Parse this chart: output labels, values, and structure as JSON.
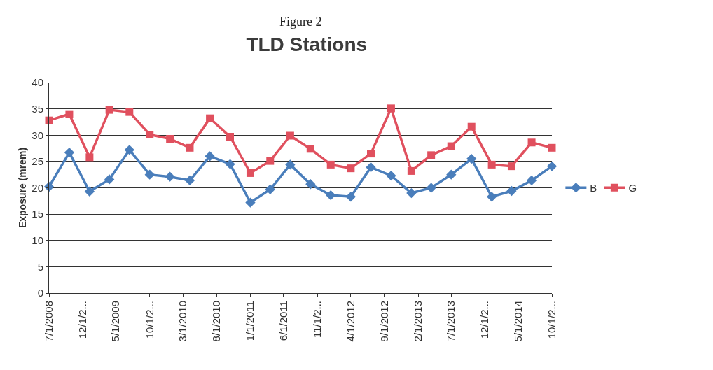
{
  "chart_data": {
    "type": "line",
    "title": "TLD Stations",
    "ylabel": "Exposure (mrem)",
    "annotations": [
      "Figure 2"
    ],
    "x": [
      "2008-07-01",
      "2008-10-01",
      "2009-01-01",
      "2009-04-01",
      "2009-07-01",
      "2009-10-01",
      "2010-01-01",
      "2010-04-01",
      "2010-07-01",
      "2010-10-01",
      "2011-01-01",
      "2011-04-01",
      "2011-07-01",
      "2011-10-01",
      "2012-01-01",
      "2012-04-01",
      "2012-07-01",
      "2012-10-01",
      "2013-01-01",
      "2013-04-01",
      "2013-07-01",
      "2013-10-01",
      "2014-01-01",
      "2014-04-01",
      "2014-07-01",
      "2014-10-01"
    ],
    "series": [
      {
        "name": "B",
        "color": "#4a7ebb",
        "marker": "diamond",
        "values": [
          20.2,
          26.7,
          19.3,
          21.6,
          27.2,
          22.5,
          22.1,
          21.4,
          26.0,
          24.5,
          17.2,
          19.7,
          24.4,
          20.7,
          18.6,
          18.3,
          23.9,
          22.3,
          19.0,
          20.0,
          22.5,
          25.5,
          18.3,
          19.4,
          21.4,
          24.1
        ]
      },
      {
        "name": "G",
        "color": "#e0505e",
        "marker": "square",
        "values": [
          32.8,
          34.0,
          25.8,
          34.8,
          34.4,
          30.1,
          29.3,
          27.6,
          33.2,
          29.7,
          22.8,
          25.1,
          29.9,
          27.4,
          24.4,
          23.7,
          26.5,
          35.1,
          23.2,
          26.2,
          27.9,
          31.6,
          24.4,
          24.1,
          28.6,
          27.6
        ]
      }
    ],
    "xlim": [
      "2008-07-01",
      "2014-10-01"
    ],
    "xticks": [
      {
        "value": "2008-07-01",
        "label": "7/1/2008"
      },
      {
        "value": "2008-12-01",
        "label": "12/1/2..."
      },
      {
        "value": "2009-05-01",
        "label": "5/1/2009"
      },
      {
        "value": "2009-10-01",
        "label": "10/1/2..."
      },
      {
        "value": "2010-03-01",
        "label": "3/1/2010"
      },
      {
        "value": "2010-08-01",
        "label": "8/1/2010"
      },
      {
        "value": "2011-01-01",
        "label": "1/1/2011"
      },
      {
        "value": "2011-06-01",
        "label": "6/1/2011"
      },
      {
        "value": "2011-11-01",
        "label": "11/1/2..."
      },
      {
        "value": "2012-04-01",
        "label": "4/1/2012"
      },
      {
        "value": "2012-09-01",
        "label": "9/1/2012"
      },
      {
        "value": "2013-02-01",
        "label": "2/1/2013"
      },
      {
        "value": "2013-07-01",
        "label": "7/1/2013"
      },
      {
        "value": "2013-12-01",
        "label": "12/1/2..."
      },
      {
        "value": "2014-05-01",
        "label": "5/1/2014"
      },
      {
        "value": "2014-10-01",
        "label": "10/1/2..."
      }
    ],
    "ylim": [
      0,
      40
    ],
    "yticks": [
      0,
      5,
      10,
      15,
      20,
      25,
      30,
      35,
      40
    ],
    "grid": "y",
    "legend": "right",
    "line_style": "solid"
  }
}
